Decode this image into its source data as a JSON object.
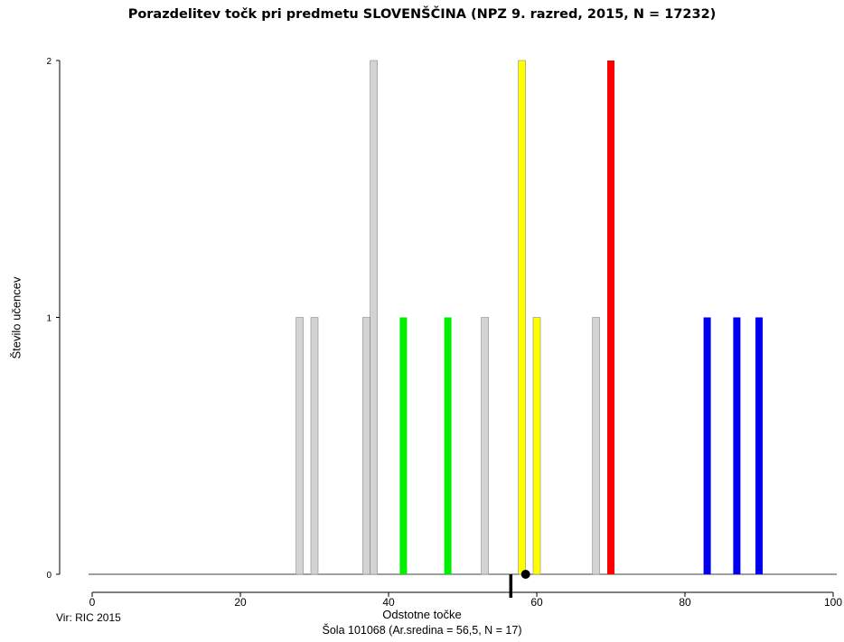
{
  "chart_data": {
    "type": "bar",
    "title": "Porazdelitev točk pri predmetu SLOVENŠČINA (NPZ 9. razred, 2015, N = 17232)",
    "subtitle": "Šola 101068 (Ar.sredina = 56,5, N = 17)",
    "source": "Vir: RIC 2015",
    "xlabel": "Odstotne točke",
    "ylabel": "Število učencev",
    "xlim": [
      0,
      100
    ],
    "ylim": [
      0,
      2
    ],
    "xticks": [
      0,
      20,
      40,
      60,
      80,
      100
    ],
    "yticks": [
      0,
      1,
      2
    ],
    "mean_marker": 56.5,
    "mean_dot": 58.5,
    "bars": [
      {
        "x": 28,
        "value": 1,
        "color": "#d3d3d3"
      },
      {
        "x": 30,
        "value": 1,
        "color": "#d3d3d3"
      },
      {
        "x": 37,
        "value": 1,
        "color": "#d3d3d3"
      },
      {
        "x": 38,
        "value": 2,
        "color": "#d3d3d3"
      },
      {
        "x": 42,
        "value": 1,
        "color": "#00ee00"
      },
      {
        "x": 48,
        "value": 1,
        "color": "#00ee00"
      },
      {
        "x": 53,
        "value": 1,
        "color": "#d3d3d3"
      },
      {
        "x": 58,
        "value": 2,
        "color": "#ffff00"
      },
      {
        "x": 60,
        "value": 1,
        "color": "#ffff00"
      },
      {
        "x": 68,
        "value": 1,
        "color": "#d3d3d3"
      },
      {
        "x": 70,
        "value": 2,
        "color": "#ff0000"
      },
      {
        "x": 83,
        "value": 1,
        "color": "#0000ee"
      },
      {
        "x": 87,
        "value": 1,
        "color": "#0000ee"
      },
      {
        "x": 90,
        "value": 1,
        "color": "#0000ee"
      }
    ]
  }
}
